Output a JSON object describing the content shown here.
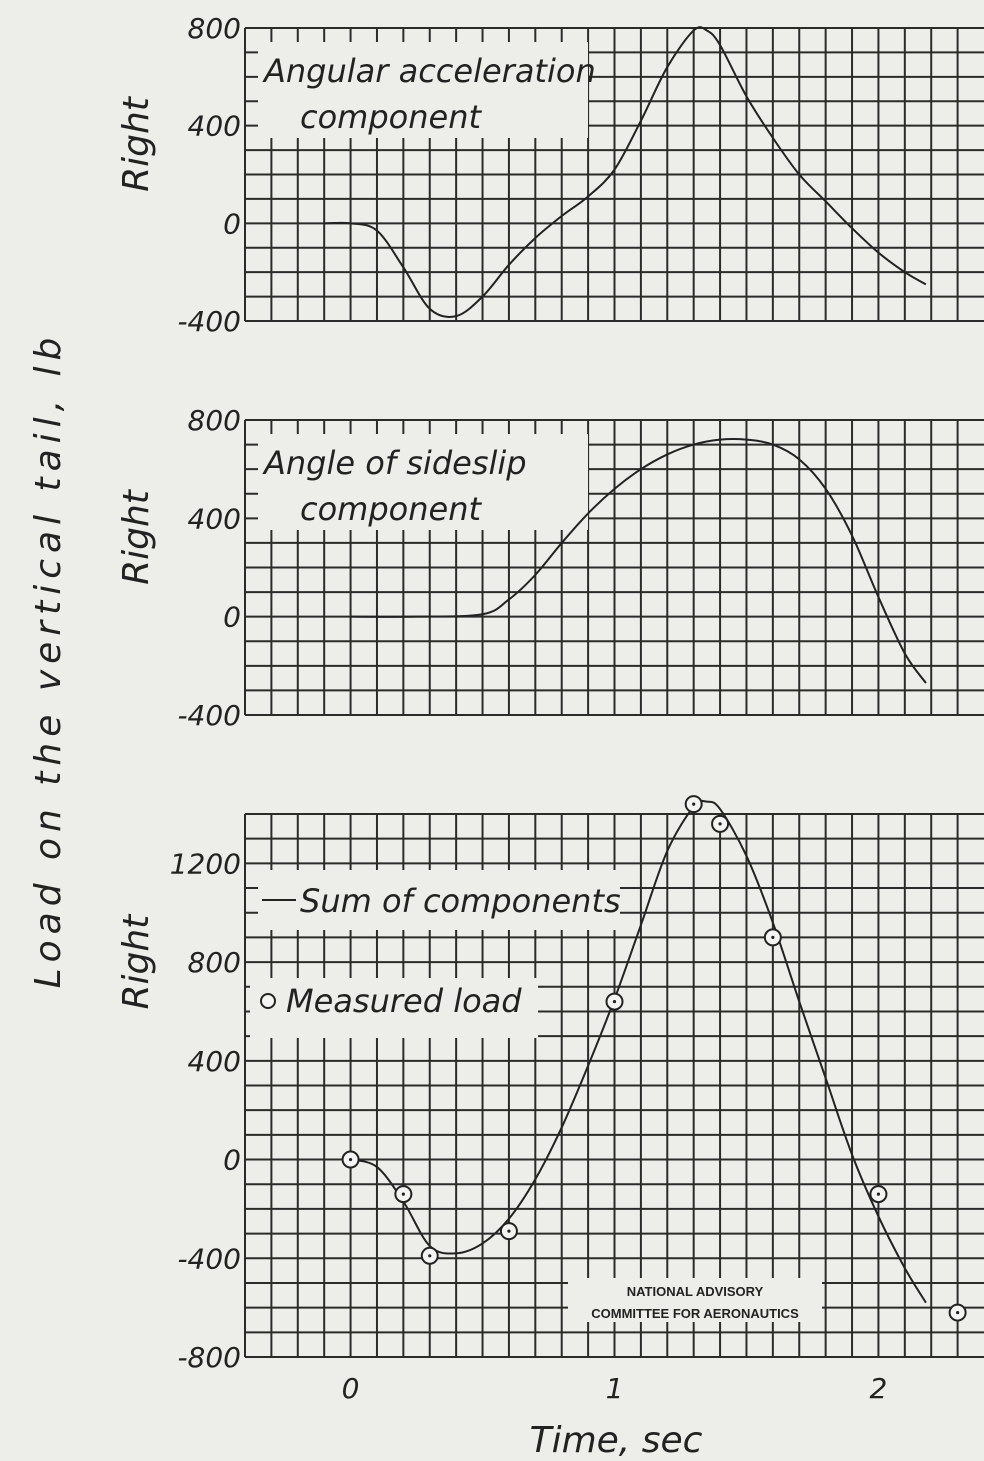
{
  "figure": {
    "ylabel": "Load on the vertical tail, lb",
    "xlabel": "Time, sec",
    "x_ticks": [
      {
        "v": 0,
        "t": "0"
      },
      {
        "v": 1,
        "t": "1"
      },
      {
        "v": 2,
        "t": "2"
      }
    ],
    "stamp_line1": "NATIONAL ADVISORY",
    "stamp_line2": "COMMITTEE FOR AERONAUTICS"
  },
  "chart_data": [
    {
      "type": "line",
      "ylabel": "Right",
      "annotation": [
        "Angular acceleration",
        "component"
      ],
      "xlim": [
        -0.4,
        2.4
      ],
      "ylim": [
        -400,
        800
      ],
      "yticks": [
        -400,
        0,
        400,
        800
      ],
      "grid": true,
      "series": [
        {
          "x": [
            -0.1,
            0.0,
            0.1,
            0.2,
            0.3,
            0.4,
            0.5,
            0.6,
            0.7,
            0.8,
            0.9,
            1.0,
            1.1,
            1.2,
            1.3,
            1.35,
            1.4,
            1.5,
            1.6,
            1.7,
            1.8,
            1.9,
            2.0,
            2.1,
            2.18
          ],
          "y": [
            0,
            0,
            -30,
            -180,
            -350,
            -380,
            -300,
            -170,
            -60,
            30,
            110,
            220,
            420,
            640,
            790,
            790,
            730,
            520,
            350,
            200,
            90,
            -20,
            -120,
            -200,
            -250
          ]
        }
      ]
    },
    {
      "type": "line",
      "ylabel": "Right",
      "annotation": [
        "Angle of sideslip",
        "component"
      ],
      "xlim": [
        -0.4,
        2.4
      ],
      "ylim": [
        -400,
        800
      ],
      "yticks": [
        -400,
        0,
        400,
        800
      ],
      "grid": true,
      "series": [
        {
          "x": [
            0.0,
            0.25,
            0.5,
            0.6,
            0.7,
            0.8,
            0.9,
            1.0,
            1.1,
            1.2,
            1.3,
            1.4,
            1.5,
            1.6,
            1.7,
            1.8,
            1.9,
            2.0,
            2.1,
            2.18
          ],
          "y": [
            0,
            0,
            10,
            70,
            170,
            300,
            420,
            520,
            600,
            660,
            700,
            720,
            720,
            700,
            640,
            520,
            330,
            80,
            -150,
            -270
          ]
        }
      ]
    },
    {
      "type": "line",
      "ylabel": "Right",
      "legend": [
        "Sum of components",
        "Measured load"
      ],
      "xlim": [
        -0.4,
        2.4
      ],
      "ylim": [
        -800,
        1400
      ],
      "yticks": [
        -800,
        -400,
        0,
        400,
        800,
        1200
      ],
      "grid": true,
      "series": [
        {
          "name": "Sum of components",
          "x": [
            0.0,
            0.1,
            0.2,
            0.3,
            0.4,
            0.5,
            0.6,
            0.7,
            0.8,
            0.9,
            1.0,
            1.1,
            1.2,
            1.3,
            1.35,
            1.4,
            1.5,
            1.6,
            1.7,
            1.8,
            1.9,
            2.0,
            2.1,
            2.18
          ],
          "y": [
            0,
            -30,
            -170,
            -350,
            -380,
            -340,
            -240,
            -80,
            130,
            380,
            650,
            950,
            1250,
            1430,
            1450,
            1420,
            1230,
            960,
            640,
            330,
            20,
            -230,
            -440,
            -580
          ]
        },
        {
          "name": "Measured load",
          "marker": "circle",
          "x": [
            0.0,
            0.2,
            0.3,
            0.6,
            1.0,
            1.3,
            1.4,
            1.6,
            2.0,
            2.3
          ],
          "y": [
            0,
            -140,
            -390,
            -290,
            640,
            1440,
            1360,
            900,
            -140,
            -620
          ]
        }
      ]
    }
  ]
}
